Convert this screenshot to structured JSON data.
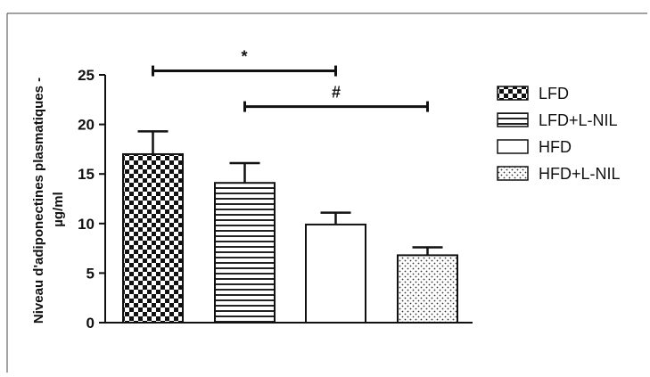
{
  "chart_data": {
    "type": "bar",
    "title": "",
    "ylabel_line1": "Niveau d'adiponectines plasmatiques -",
    "ylabel_line2": "µg/ml",
    "ylim": [
      0,
      25
    ],
    "yticks": [
      "0",
      "5",
      "10",
      "15",
      "20",
      "25"
    ],
    "grid": false,
    "legend_position": "right",
    "categories": [
      "LFD",
      "LFD+L-NIL",
      "HFD",
      "HFD+L-NIL"
    ],
    "values": [
      17.0,
      14.1,
      9.9,
      6.8
    ],
    "errors": [
      2.3,
      2.0,
      1.2,
      0.8
    ],
    "patterns": [
      "checkerboard",
      "horizontal-stripes",
      "solid-white",
      "dots"
    ],
    "significance": [
      {
        "label": "*",
        "from": 0,
        "to": 2,
        "y": 25.4
      },
      {
        "label": "#",
        "from": 1,
        "to": 3,
        "y": 21.8
      }
    ]
  }
}
